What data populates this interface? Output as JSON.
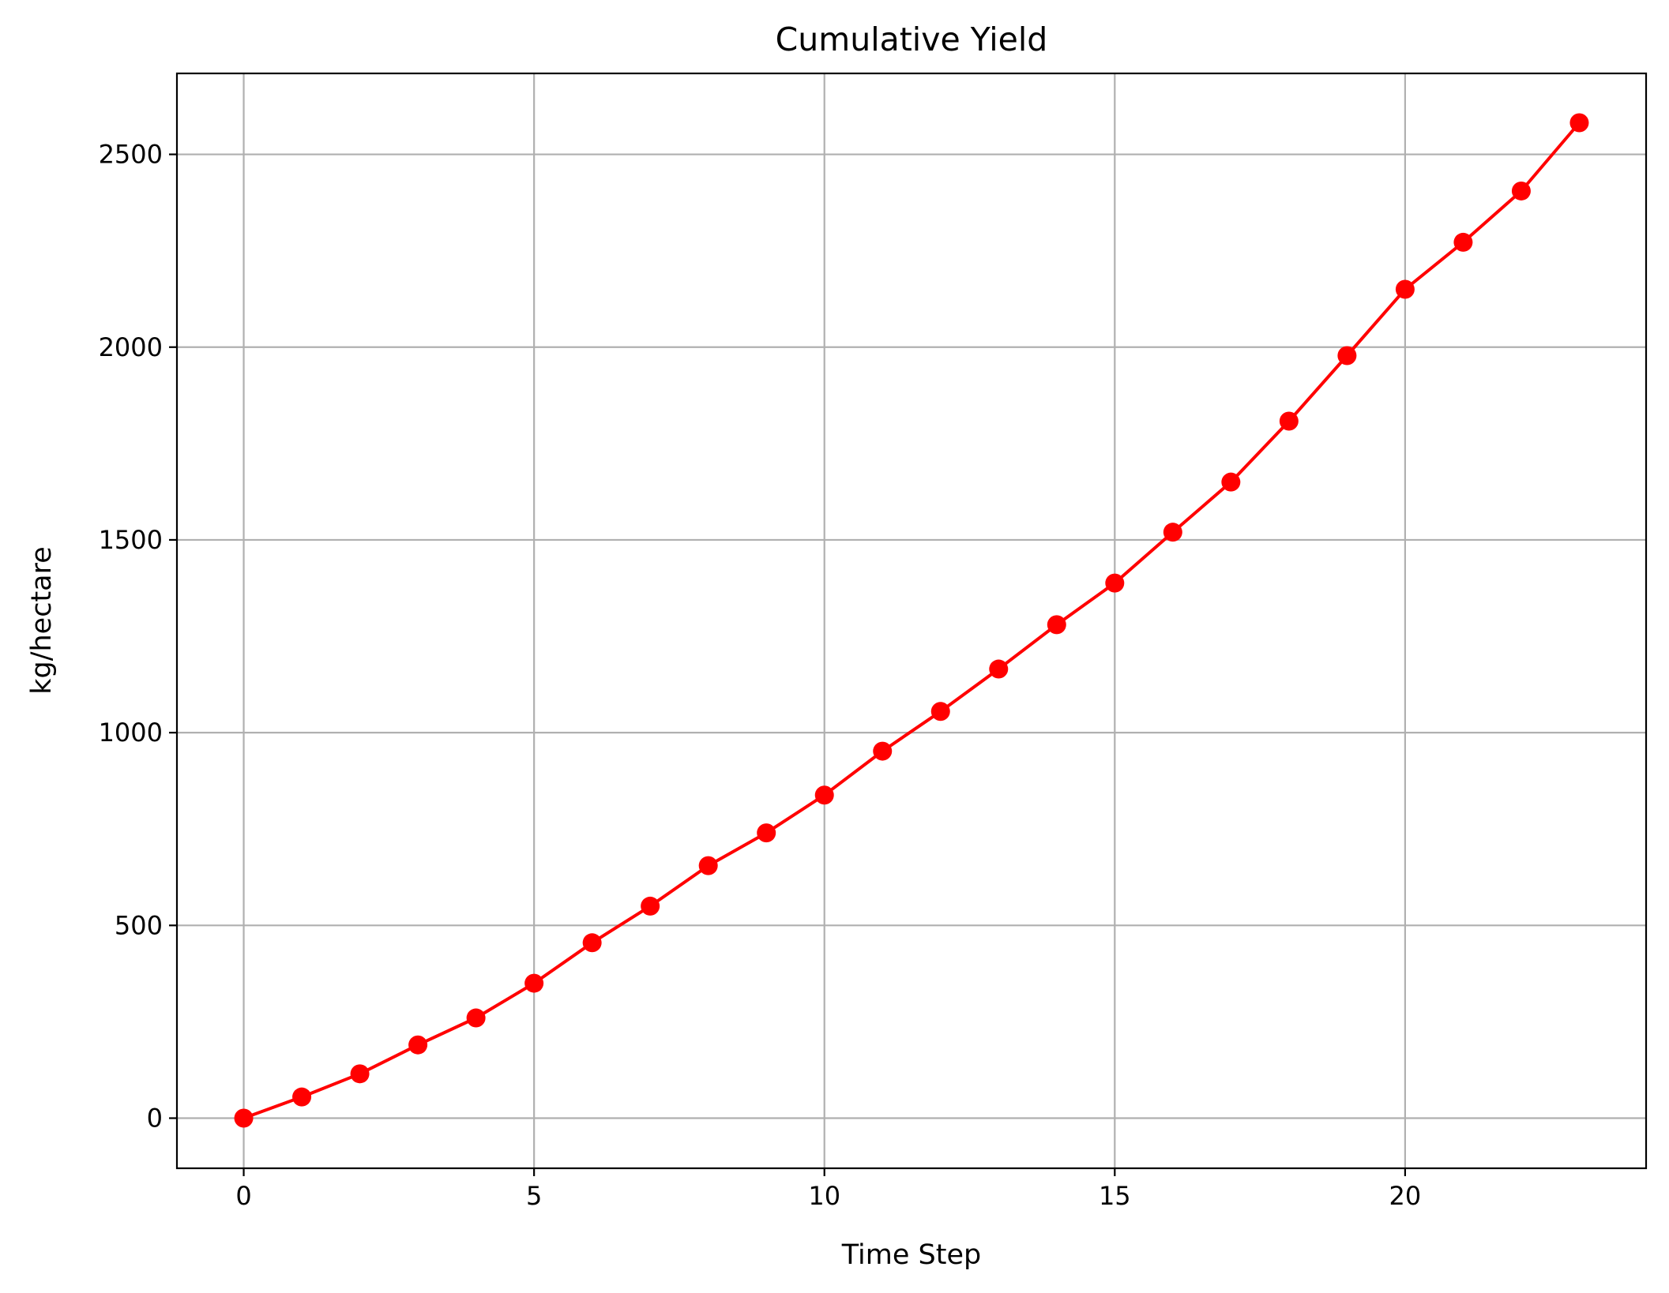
{
  "chart_data": {
    "type": "line",
    "title": "Cumulative Yield",
    "xlabel": "Time Step",
    "ylabel": "kg/hectare",
    "xlim": [
      -1.15,
      24.15
    ],
    "ylim": [
      -130,
      2710
    ],
    "xticks": [
      0,
      5,
      10,
      15,
      20
    ],
    "yticks": [
      0,
      500,
      1000,
      1500,
      2000,
      2500
    ],
    "grid": true,
    "color": "#ff0000",
    "marker": "circle",
    "series": [
      {
        "x": [
          0,
          1,
          2,
          3,
          4,
          5,
          6,
          7,
          8,
          9,
          10,
          11,
          12,
          13,
          14,
          15,
          16,
          17,
          18,
          19,
          20,
          21,
          22,
          23
        ],
        "values": [
          0,
          55,
          115,
          190,
          260,
          350,
          455,
          550,
          655,
          740,
          838,
          952,
          1055,
          1165,
          1280,
          1388,
          1520,
          1650,
          1808,
          1978,
          2150,
          2272,
          2405,
          2582
        ]
      }
    ]
  }
}
